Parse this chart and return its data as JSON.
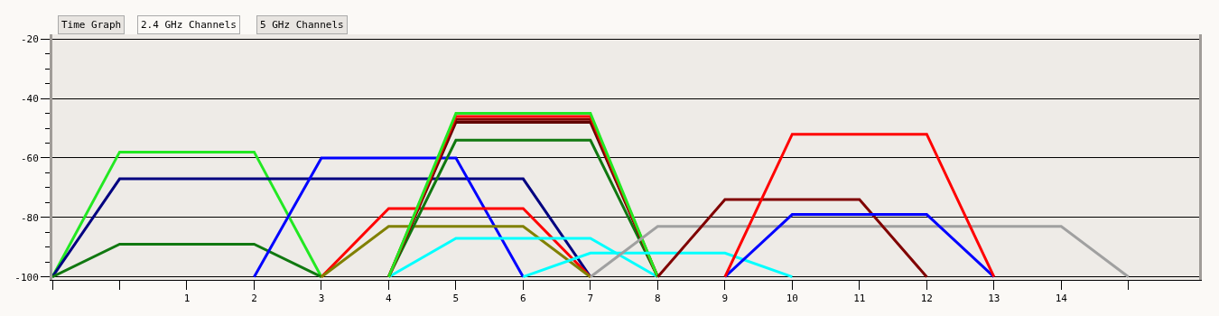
{
  "chart_data": {
    "type": "line",
    "annotations": [
      "Time Graph",
      "2.4 GHz Channels",
      "5 GHz Channels"
    ],
    "series": [
      {
        "color": "#22e822",
        "x": [
          -1,
          0,
          2,
          3
        ],
        "values": [
          -100,
          -58,
          -58,
          -100
        ]
      },
      {
        "color": "#000080",
        "x": [
          -1,
          0,
          6,
          7
        ],
        "values": [
          -100,
          -67,
          -67,
          -100
        ]
      },
      {
        "color": "#107810",
        "x": [
          -1,
          0,
          2,
          3
        ],
        "values": [
          -100,
          -89,
          -89,
          -100
        ]
      },
      {
        "color": "#0000ff",
        "x": [
          2,
          3,
          5,
          6
        ],
        "values": [
          -100,
          -60,
          -60,
          -100
        ]
      },
      {
        "color": "#ff0000",
        "x": [
          3,
          4,
          6,
          7
        ],
        "values": [
          -100,
          -77,
          -77,
          -100
        ]
      },
      {
        "color": "#808000",
        "x": [
          3,
          4,
          6,
          7
        ],
        "values": [
          -100,
          -83,
          -83,
          -100
        ]
      },
      {
        "color": "#00ffff",
        "x": [
          4,
          5,
          7,
          8
        ],
        "values": [
          -100,
          -87,
          -87,
          -100
        ]
      },
      {
        "color": "#107810",
        "x": [
          4,
          5,
          7,
          8
        ],
        "values": [
          -100,
          -54,
          -54,
          -100
        ]
      },
      {
        "color": "#600000",
        "x": [
          4,
          5,
          7,
          8
        ],
        "values": [
          -100,
          -48,
          -48,
          -100
        ]
      },
      {
        "color": "#800000",
        "x": [
          4,
          5,
          7,
          8
        ],
        "values": [
          -100,
          -47,
          -47,
          -100
        ]
      },
      {
        "color": "#ff0000",
        "x": [
          4,
          5,
          7,
          8
        ],
        "values": [
          -100,
          -46,
          -46,
          -100
        ]
      },
      {
        "color": "#22e822",
        "x": [
          4,
          5,
          7,
          8
        ],
        "values": [
          -100,
          -45,
          -45,
          -100
        ]
      },
      {
        "color": "#00ffff",
        "x": [
          6,
          7,
          9,
          10
        ],
        "values": [
          -100,
          -92,
          -92,
          -100
        ]
      },
      {
        "color": "#a0a0a0",
        "x": [
          7,
          8,
          14,
          15
        ],
        "values": [
          -100,
          -83,
          -83,
          -100
        ]
      },
      {
        "color": "#800000",
        "x": [
          8,
          9,
          11,
          12
        ],
        "values": [
          -100,
          -74,
          -74,
          -100
        ]
      },
      {
        "color": "#0000ff",
        "x": [
          9,
          10,
          12,
          13
        ],
        "values": [
          -100,
          -79,
          -79,
          -100
        ]
      },
      {
        "color": "#ff0000",
        "x": [
          9,
          10,
          12,
          13
        ],
        "values": [
          -100,
          -52,
          -52,
          -100
        ]
      }
    ],
    "xlim": [
      -1,
      16.05
    ],
    "xticks": [
      {
        "value": -1,
        "label": null
      },
      {
        "value": 0,
        "label": null
      },
      1,
      2,
      3,
      4,
      5,
      6,
      7,
      8,
      9,
      10,
      11,
      12,
      13,
      14,
      {
        "value": 15,
        "label": null
      }
    ],
    "ylim": [
      -101,
      -18.4
    ],
    "yticks": [
      -20,
      {
        "value": -25,
        "label": null
      },
      {
        "value": -30,
        "label": null
      },
      {
        "value": -35,
        "label": null
      },
      -40,
      {
        "value": -45,
        "label": null
      },
      {
        "value": -50,
        "label": null
      },
      {
        "value": -55,
        "label": null
      },
      -60,
      {
        "value": -65,
        "label": null
      },
      {
        "value": -70,
        "label": null
      },
      {
        "value": -75,
        "label": null
      },
      -80,
      {
        "value": -85,
        "label": null
      },
      {
        "value": -90,
        "label": null
      },
      {
        "value": -95,
        "label": null
      },
      -100
    ],
    "grid": "y",
    "marker": "none",
    "line_style": "solid"
  }
}
